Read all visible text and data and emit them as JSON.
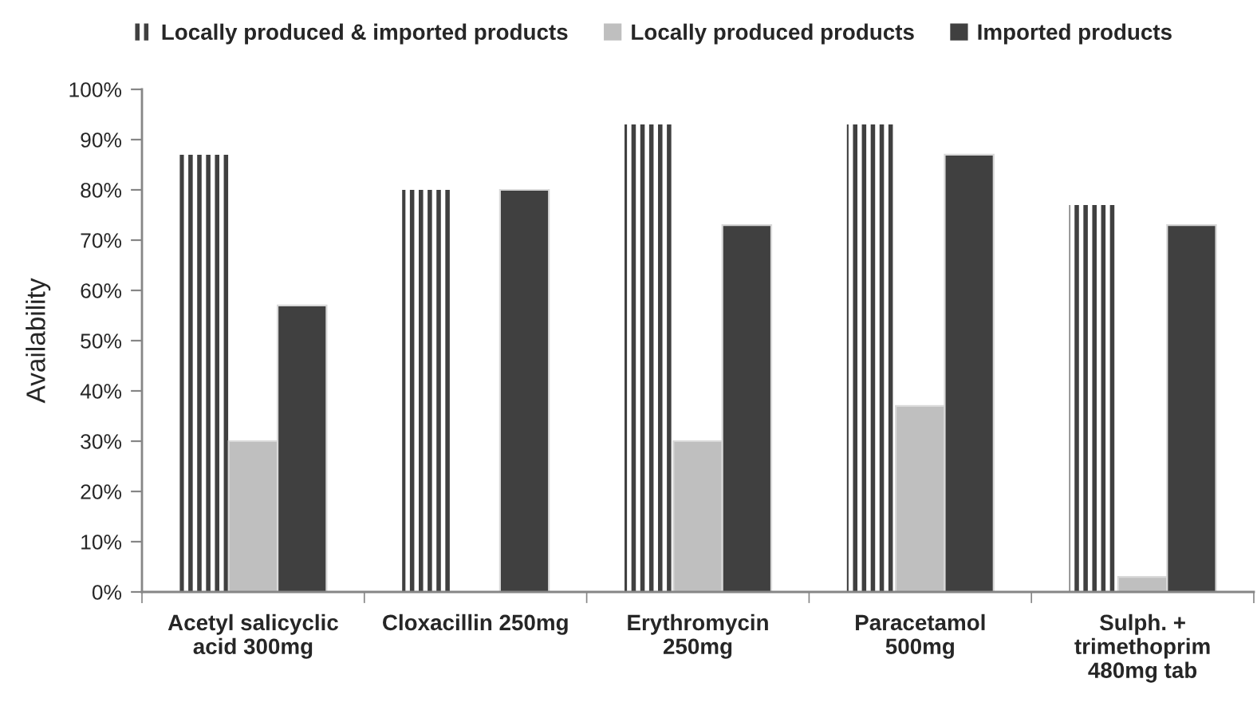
{
  "chart_data": {
    "type": "bar",
    "ylabel": "Availability",
    "categories": [
      "Acetyl salicyclic\nacid 300mg",
      "Cloxacillin 250mg",
      "Erythromycin\n250mg",
      "Paracetamol\n500mg",
      "Sulph. +\ntrimethoprim\n480mg tab"
    ],
    "series": [
      {
        "name": "Locally produced & imported products",
        "color": "#404040",
        "values": [
          87,
          80,
          93,
          93,
          77
        ]
      },
      {
        "name": "Locally produced products",
        "color": "#bfbfbf",
        "values": [
          30,
          null,
          30,
          37,
          3
        ]
      },
      {
        "name": "Imported products",
        "color": "#404040",
        "values": [
          57,
          80,
          73,
          87,
          73
        ]
      }
    ],
    "ylim": [
      0,
      100
    ],
    "yticks": [
      {
        "value": 0,
        "label": "0%"
      },
      {
        "value": 10,
        "label": "10%"
      },
      {
        "value": 20,
        "label": "20%"
      },
      {
        "value": 30,
        "label": "30%"
      },
      {
        "value": 40,
        "label": "40%"
      },
      {
        "value": 50,
        "label": "50%"
      },
      {
        "value": 60,
        "label": "60%"
      },
      {
        "value": 70,
        "label": "70%"
      },
      {
        "value": 80,
        "label": "80%"
      },
      {
        "value": 90,
        "label": "90%"
      },
      {
        "value": 100,
        "label": "100%"
      }
    ],
    "legend": "top"
  }
}
